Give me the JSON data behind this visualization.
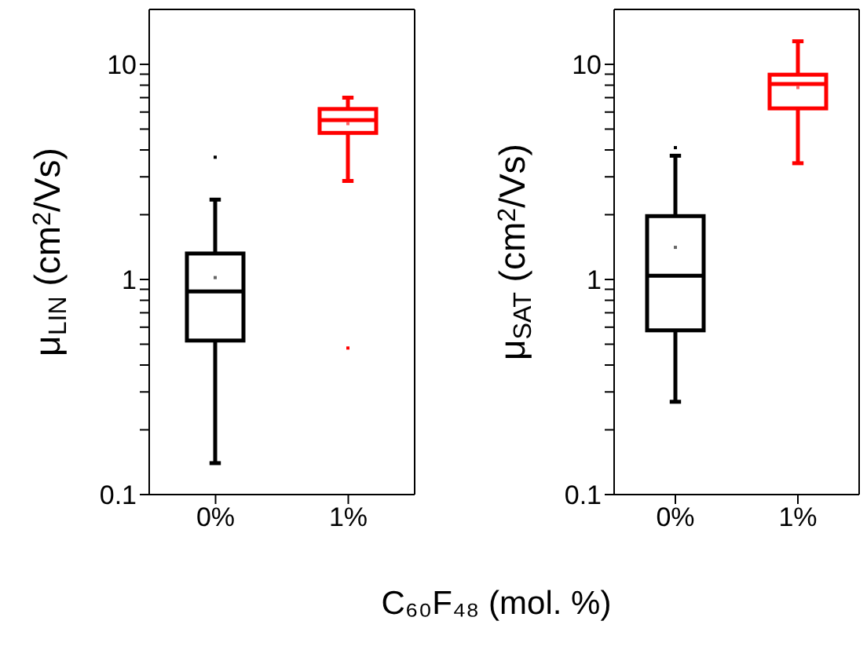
{
  "chart_data": [
    {
      "type": "box",
      "categories": [
        "0%",
        "1%"
      ],
      "colors": [
        "#000000",
        "#ff0000"
      ],
      "ylabel": "μ$_{LIN}$ (cm$^{2}$/Vs)",
      "xlabel": "C₆₀F₄₈ (mol. %)",
      "log": "y",
      "ylim": [
        0.1,
        18
      ],
      "yticks": [
        0.1,
        {
          "value": 0.2,
          "label": null
        },
        {
          "value": 0.3,
          "label": null
        },
        {
          "value": 0.4,
          "label": null
        },
        {
          "value": 0.5,
          "label": null
        },
        {
          "value": 0.6,
          "label": null
        },
        {
          "value": 0.7,
          "label": null
        },
        {
          "value": 0.8,
          "label": null
        },
        {
          "value": 0.9,
          "label": null
        },
        1,
        {
          "value": 2,
          "label": null
        },
        {
          "value": 3,
          "label": null
        },
        {
          "value": 4,
          "label": null
        },
        {
          "value": 5,
          "label": null
        },
        {
          "value": 6,
          "label": null
        },
        {
          "value": 7,
          "label": null
        },
        {
          "value": 8,
          "label": null
        },
        {
          "value": 9,
          "label": null
        },
        10
      ],
      "boxes": [
        {
          "low": 0.14,
          "q1": 0.52,
          "median": 0.88,
          "q3": 1.32,
          "high": 2.35,
          "mean": 1.02,
          "outliers": [
            3.7
          ]
        },
        {
          "low": 2.87,
          "q1": 4.8,
          "median": 5.5,
          "q3": 6.2,
          "high": 7.0,
          "mean": 5.3,
          "outliers": [
            0.48
          ]
        }
      ]
    },
    {
      "type": "box",
      "categories": [
        "0%",
        "1%"
      ],
      "colors": [
        "#000000",
        "#ff0000"
      ],
      "ylabel": "μ$_{SAT}$ (cm$^{2}$/Vs)",
      "log": "y",
      "ylim": [
        0.1,
        18
      ],
      "yticks": [
        0.1,
        {
          "value": 0.2,
          "label": null
        },
        {
          "value": 0.3,
          "label": null
        },
        {
          "value": 0.4,
          "label": null
        },
        {
          "value": 0.5,
          "label": null
        },
        {
          "value": 0.6,
          "label": null
        },
        {
          "value": 0.7,
          "label": null
        },
        {
          "value": 0.8,
          "label": null
        },
        {
          "value": 0.9,
          "label": null
        },
        1,
        {
          "value": 2,
          "label": null
        },
        {
          "value": 3,
          "label": null
        },
        {
          "value": 4,
          "label": null
        },
        {
          "value": 5,
          "label": null
        },
        {
          "value": 6,
          "label": null
        },
        {
          "value": 7,
          "label": null
        },
        {
          "value": 8,
          "label": null
        },
        {
          "value": 9,
          "label": null
        },
        10
      ],
      "boxes": [
        {
          "low": 0.27,
          "q1": 0.58,
          "median": 1.04,
          "q3": 1.97,
          "high": 3.76,
          "mean": 1.41,
          "outliers": [
            4.1
          ]
        },
        {
          "low": 3.47,
          "q1": 6.24,
          "median": 8.1,
          "q3": 8.95,
          "high": 12.8,
          "mean": 7.8
        }
      ]
    }
  ]
}
